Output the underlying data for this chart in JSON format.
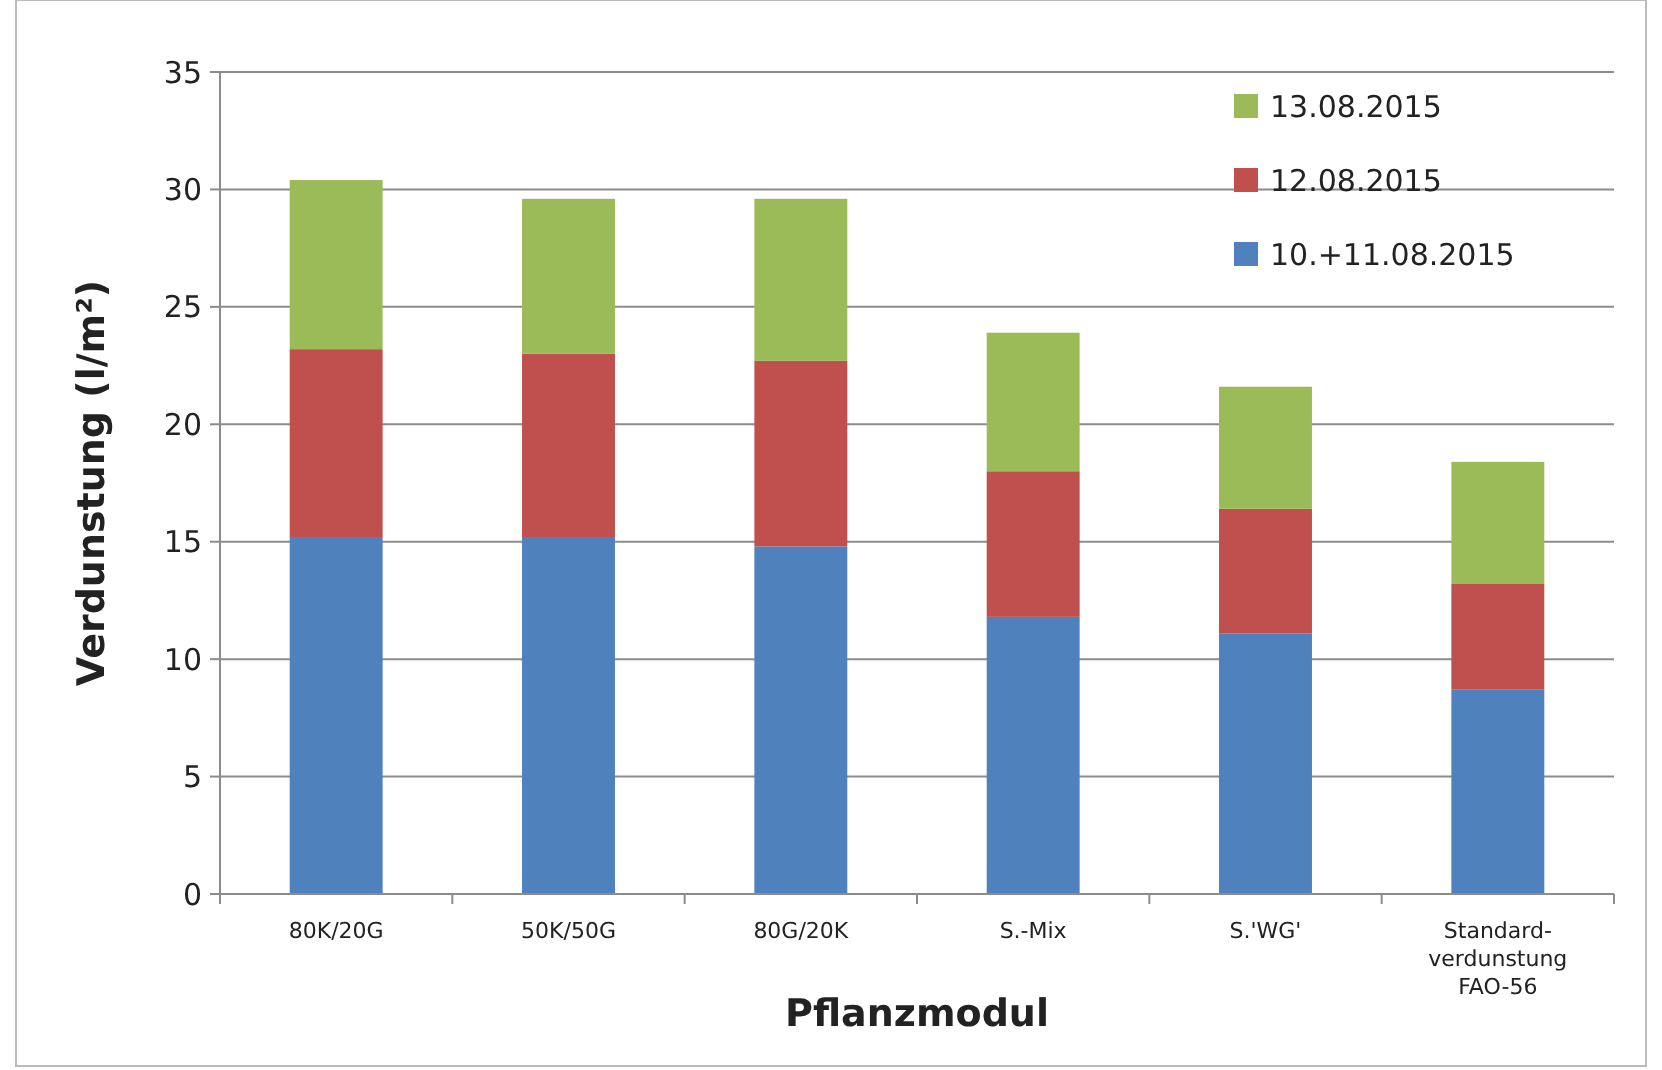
{
  "chart_data": {
    "type": "bar",
    "stacked": true,
    "xlabel": "Pflanzmodul",
    "ylabel": "Verdunstung (l/m²)",
    "categories": [
      "80K/20G",
      "50K/50G",
      "80G/20K",
      "S.-Mix",
      "S.'WG'",
      "Standard-\nverdunstung\nFAO-56"
    ],
    "series": [
      {
        "name": "10.+11.08.2015",
        "color": "#4f81bd",
        "values": [
          15.2,
          15.2,
          14.8,
          11.8,
          11.1,
          8.7
        ]
      },
      {
        "name": "12.08.2015",
        "color": "#c0504d",
        "values": [
          8.0,
          7.8,
          7.9,
          6.2,
          5.3,
          4.5
        ]
      },
      {
        "name": "13.08.2015",
        "color": "#9bbb59",
        "values": [
          7.2,
          6.6,
          6.9,
          5.9,
          5.2,
          5.2
        ]
      }
    ],
    "ylim": [
      0,
      35
    ],
    "yticks": [
      0,
      5,
      10,
      15,
      20,
      25,
      30,
      35
    ],
    "grid": "y",
    "legend": "top right"
  }
}
